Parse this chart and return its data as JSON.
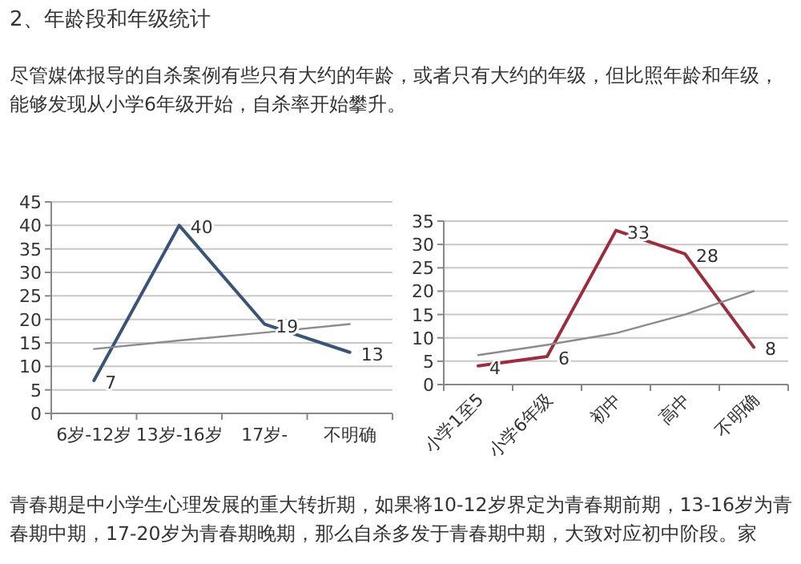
{
  "chart_data": [
    {
      "type": "line",
      "title": "2、年龄段和年级统计",
      "subtitle": "尽管媒体报导的自杀案例有些只有大约的年龄，或者只有大约的年级，但比照年龄和年级，能够发现从小学6年级开始，自杀率开始攀升。",
      "annotations": [
        "青春期是中小学生心理发展的重大转折期，如果将10-12岁界定为青春期前期，13-16岁为青春期中期，17-20岁为青春期晚期，那么自杀多发于青春期中期，大致对应初中阶段。家"
      ],
      "categories": [
        "6岁-12岁",
        "13岁-16岁",
        "17岁-",
        "不明确"
      ],
      "series": [
        {
          "color": "#3a5478",
          "values": [
            7,
            40,
            19,
            13
          ],
          "value_labels": [
            "7",
            "40",
            "19",
            "13"
          ]
        },
        {
          "type": "line",
          "color": "#8c8c8c",
          "values": [
            13.7,
            15.5,
            17.2,
            19
          ]
        }
      ],
      "ylim": [
        0,
        45
      ],
      "yticks": [
        0,
        5,
        10,
        15,
        20,
        25,
        30,
        35,
        40,
        45
      ],
      "grid": "y"
    },
    {
      "type": "line",
      "categories": [
        "小学1至5",
        "小学6年级",
        "初中",
        "高中",
        "不明确"
      ],
      "series": [
        {
          "color": "#9b2d3c",
          "values": [
            4,
            6,
            33,
            28,
            8
          ],
          "value_labels": [
            "4",
            "6",
            "33",
            "28",
            "8"
          ]
        },
        {
          "type": "line",
          "color": "#8c8c8c",
          "values": [
            6.3,
            8.5,
            11,
            15,
            20
          ]
        }
      ],
      "ylim": [
        0,
        35
      ],
      "yticks": [
        0,
        5,
        10,
        15,
        20,
        25,
        30,
        35
      ],
      "grid": "y"
    }
  ]
}
